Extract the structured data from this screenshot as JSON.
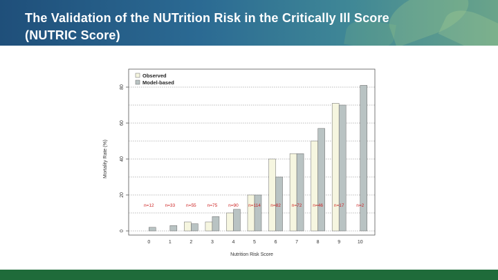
{
  "slide": {
    "title_line1": "The Validation of the NUTrition Risk in the Critically Ill Score",
    "title_line2": "(NUTRIC Score)"
  },
  "colors": {
    "header_start": "#1f4f7a",
    "header_end": "#6aa48a",
    "footer": "#1f6b3a",
    "observed_fill": "#f6f6e0",
    "model_fill": "#b9c3c3",
    "n_label": "#cc2222"
  },
  "chart_data": {
    "type": "bar",
    "xlabel": "Nutrition Risk Score",
    "ylabel": "Mortality Rate (%)",
    "ylim": [
      0,
      80
    ],
    "yticks": [
      0,
      20,
      40,
      60,
      80
    ],
    "grid": true,
    "legend_position": "top-left",
    "categories": [
      "0",
      "1",
      "2",
      "3",
      "4",
      "5",
      "6",
      "7",
      "8",
      "9",
      "10"
    ],
    "series": [
      {
        "name": "Observed",
        "color": "#f6f6e0",
        "values": [
          0,
          0,
          5,
          5,
          10,
          20,
          40,
          43,
          50,
          71,
          0
        ]
      },
      {
        "name": "Model-based",
        "color": "#b9c3c3",
        "values": [
          2,
          3,
          4,
          8,
          12,
          20,
          30,
          43,
          57,
          70,
          81
        ]
      }
    ],
    "n_labels": [
      "n=12",
      "n=33",
      "n=55",
      "n=75",
      "n=90",
      "n=114",
      "n=82",
      "n=72",
      "n=46",
      "n=17",
      "n=2"
    ]
  }
}
